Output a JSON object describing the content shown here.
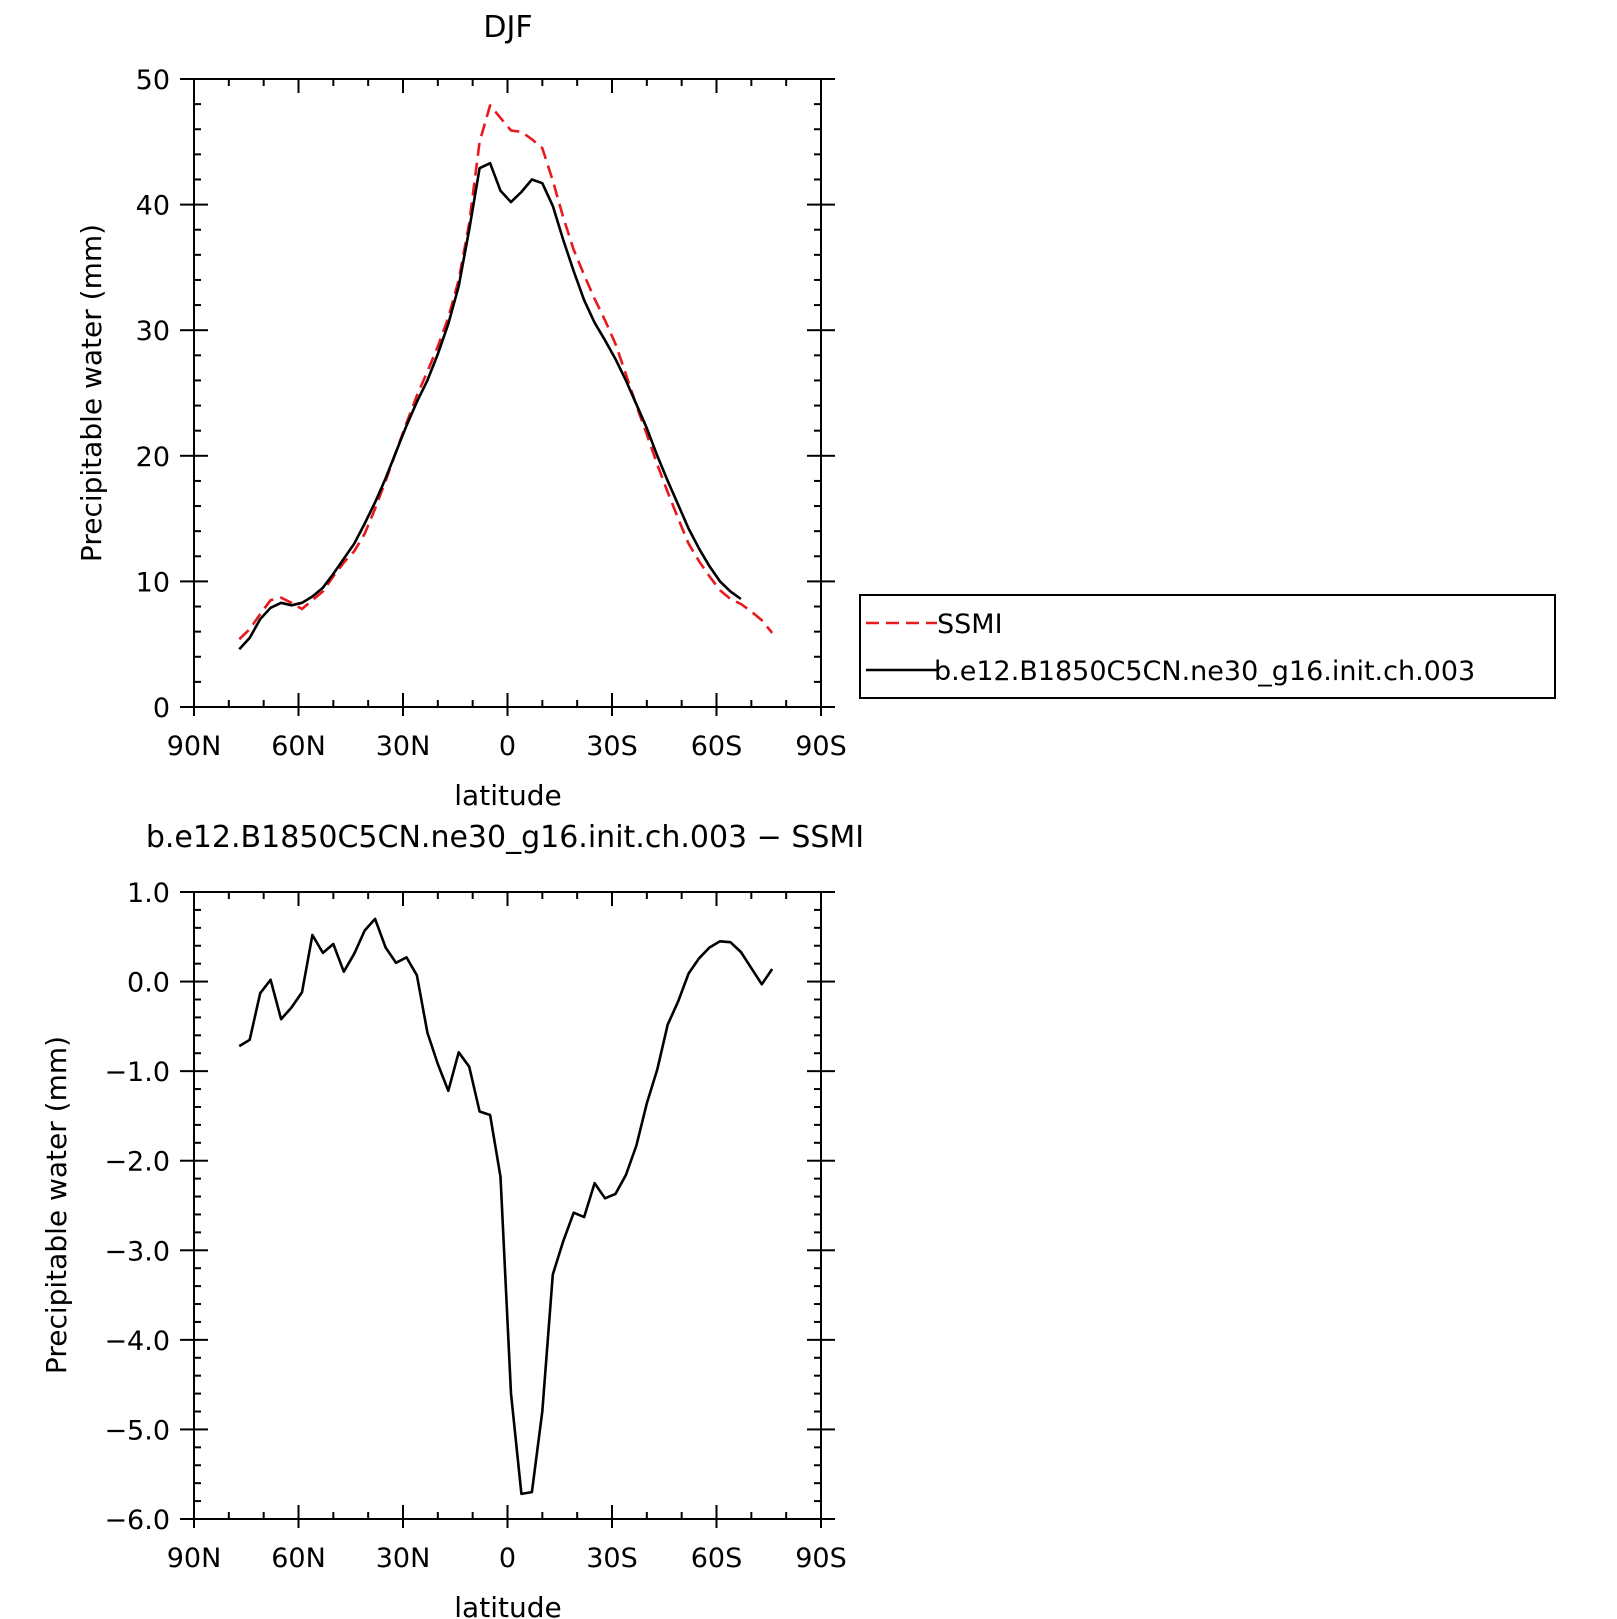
{
  "chart_data": [
    {
      "type": "line",
      "title": "DJF",
      "xlabel": "latitude",
      "ylabel": "Precipitable water (mm)",
      "xlim": [
        90,
        -90
      ],
      "ylim": [
        0,
        50
      ],
      "x_ticks": [
        {
          "value": 90,
          "label": "90N"
        },
        {
          "value": 60,
          "label": "60N"
        },
        {
          "value": 30,
          "label": "30N"
        },
        {
          "value": 0,
          "label": "0"
        },
        {
          "value": -30,
          "label": "30S"
        },
        {
          "value": -60,
          "label": "60S"
        },
        {
          "value": -90,
          "label": "90S"
        }
      ],
      "y_ticks": [
        {
          "value": 0,
          "label": "0"
        },
        {
          "value": 10,
          "label": "10"
        },
        {
          "value": 20,
          "label": "20"
        },
        {
          "value": 30,
          "label": "30"
        },
        {
          "value": 40,
          "label": "40"
        },
        {
          "value": 50,
          "label": "50"
        }
      ],
      "legend_position": "right",
      "series": [
        {
          "name": "SSMI",
          "color": "#e8191c",
          "dash": true,
          "points": [
            [
              77,
              5.4
            ],
            [
              74,
              6.2
            ],
            [
              71,
              7.4
            ],
            [
              68,
              8.5
            ],
            [
              65,
              8.7
            ],
            [
              62,
              8.3
            ],
            [
              59,
              7.8
            ],
            [
              56,
              8.5
            ],
            [
              53,
              9.2
            ],
            [
              50,
              10.4
            ],
            [
              47,
              11.5
            ],
            [
              44,
              12.4
            ],
            [
              41,
              13.8
            ],
            [
              38,
              15.8
            ],
            [
              35,
              18
            ],
            [
              32,
              20.3
            ],
            [
              29,
              22.6
            ],
            [
              26,
              24.8
            ],
            [
              23,
              26.7
            ],
            [
              20,
              28.7
            ],
            [
              17,
              31
            ],
            [
              14,
              34
            ],
            [
              11,
              38.5
            ],
            [
              8,
              45
            ],
            [
              5,
              47.9
            ],
            [
              2,
              46.9
            ],
            [
              -1,
              45.9
            ],
            [
              -4,
              45.8
            ],
            [
              -7,
              45.2
            ],
            [
              -10,
              44.5
            ],
            [
              -13,
              41.9
            ],
            [
              -16,
              39
            ],
            [
              -19,
              36.4
            ],
            [
              -22,
              34.4
            ],
            [
              -25,
              32.5
            ],
            [
              -28,
              30.8
            ],
            [
              -31,
              28.9
            ],
            [
              -34,
              26.5
            ],
            [
              -37,
              24
            ],
            [
              -40,
              21.7
            ],
            [
              -43,
              19.3
            ],
            [
              -46,
              17.1
            ],
            [
              -49,
              15
            ],
            [
              -52,
              13
            ],
            [
              -55,
              11.6
            ],
            [
              -58,
              10.4
            ],
            [
              -61,
              9.3
            ],
            [
              -64,
              8.6
            ],
            [
              -67,
              8.2
            ],
            [
              -70,
              7.6
            ],
            [
              -73,
              6.9
            ],
            [
              -76,
              5.9
            ]
          ]
        },
        {
          "name": "b.e12.B1850C5CN.ne30_g16.init.ch.003",
          "color": "#000000",
          "dash": false,
          "points": [
            [
              77,
              4.6
            ],
            [
              74,
              5.5
            ],
            [
              71,
              7
            ],
            [
              68,
              7.9
            ],
            [
              65,
              8.3
            ],
            [
              62,
              8.1
            ],
            [
              59,
              8.3
            ],
            [
              56,
              8.8
            ],
            [
              53,
              9.5
            ],
            [
              50,
              10.6
            ],
            [
              47,
              11.8
            ],
            [
              44,
              13
            ],
            [
              41,
              14.6
            ],
            [
              38,
              16.3
            ],
            [
              35,
              18.2
            ],
            [
              32,
              20.3
            ],
            [
              29,
              22.4
            ],
            [
              26,
              24.3
            ],
            [
              23,
              26
            ],
            [
              20,
              28.1
            ],
            [
              17,
              30.5
            ],
            [
              14,
              33.5
            ],
            [
              11,
              38
            ],
            [
              8,
              42.9
            ],
            [
              5,
              43.3
            ],
            [
              2,
              41.1
            ],
            [
              -1,
              40.2
            ],
            [
              -4,
              41
            ],
            [
              -7,
              42
            ],
            [
              -10,
              41.7
            ],
            [
              -13,
              39.9
            ],
            [
              -16,
              37.2
            ],
            [
              -19,
              34.7
            ],
            [
              -22,
              32.4
            ],
            [
              -25,
              30.6
            ],
            [
              -28,
              29.2
            ],
            [
              -31,
              27.7
            ],
            [
              -34,
              26
            ],
            [
              -37,
              24.1
            ],
            [
              -40,
              22.2
            ],
            [
              -43,
              20
            ],
            [
              -46,
              18
            ],
            [
              -49,
              16.1
            ],
            [
              -52,
              14.2
            ],
            [
              -55,
              12.6
            ],
            [
              -58,
              11.2
            ],
            [
              -61,
              10
            ],
            [
              -64,
              9.2
            ],
            [
              -67,
              8.6
            ]
          ]
        }
      ]
    },
    {
      "type": "line",
      "title": "b.e12.B1850C5CN.ne30_g16.init.ch.003 − SSMI",
      "xlabel": "latitude",
      "ylabel": "Precipitable water (mm)",
      "xlim": [
        90,
        -90
      ],
      "ylim": [
        -6,
        1
      ],
      "x_ticks": [
        {
          "value": 90,
          "label": "90N"
        },
        {
          "value": 60,
          "label": "60N"
        },
        {
          "value": 30,
          "label": "30N"
        },
        {
          "value": 0,
          "label": "0"
        },
        {
          "value": -30,
          "label": "30S"
        },
        {
          "value": -60,
          "label": "60S"
        },
        {
          "value": -90,
          "label": "90S"
        }
      ],
      "y_ticks": [
        {
          "value": 1,
          "label": "1.0"
        },
        {
          "value": 0,
          "label": "0.0"
        },
        {
          "value": -1,
          "label": "−1.0"
        },
        {
          "value": -2,
          "label": "−2.0"
        },
        {
          "value": -3,
          "label": "−3.0"
        },
        {
          "value": -4,
          "label": "−4.0"
        },
        {
          "value": -5,
          "label": "−5.0"
        },
        {
          "value": -6,
          "label": "−6.0"
        }
      ],
      "series": [
        {
          "color": "#000000",
          "dash": false,
          "points": [
            [
              77,
              -0.72
            ],
            [
              74,
              -0.65
            ],
            [
              71,
              -0.13
            ],
            [
              68,
              0.02
            ],
            [
              65,
              -0.42
            ],
            [
              62,
              -0.29
            ],
            [
              59,
              -0.12
            ],
            [
              56,
              0.52
            ],
            [
              53,
              0.32
            ],
            [
              50,
              0.42
            ],
            [
              47,
              0.11
            ],
            [
              44,
              0.31
            ],
            [
              41,
              0.57
            ],
            [
              38,
              0.7
            ],
            [
              35,
              0.38
            ],
            [
              32,
              0.21
            ],
            [
              29,
              0.27
            ],
            [
              26,
              0.07
            ],
            [
              23,
              -0.57
            ],
            [
              20,
              -0.92
            ],
            [
              17,
              -1.22
            ],
            [
              14,
              -0.79
            ],
            [
              11,
              -0.95
            ],
            [
              8,
              -1.45
            ],
            [
              5,
              -1.49
            ],
            [
              2,
              -2.18
            ],
            [
              -1,
              -4.6
            ],
            [
              -4,
              -5.72
            ],
            [
              -7,
              -5.7
            ],
            [
              -10,
              -4.8
            ],
            [
              -13,
              -3.27
            ],
            [
              -16,
              -2.9
            ],
            [
              -19,
              -2.58
            ],
            [
              -22,
              -2.63
            ],
            [
              -25,
              -2.25
            ],
            [
              -28,
              -2.42
            ],
            [
              -31,
              -2.37
            ],
            [
              -34,
              -2.16
            ],
            [
              -37,
              -1.83
            ],
            [
              -40,
              -1.36
            ],
            [
              -43,
              -0.98
            ],
            [
              -46,
              -0.48
            ],
            [
              -49,
              -0.22
            ],
            [
              -52,
              0.09
            ],
            [
              -55,
              0.26
            ],
            [
              -58,
              0.38
            ],
            [
              -61,
              0.45
            ],
            [
              -64,
              0.44
            ],
            [
              -67,
              0.33
            ],
            [
              -70,
              0.15
            ],
            [
              -73,
              -0.03
            ],
            [
              -76,
              0.14
            ]
          ]
        }
      ]
    }
  ]
}
